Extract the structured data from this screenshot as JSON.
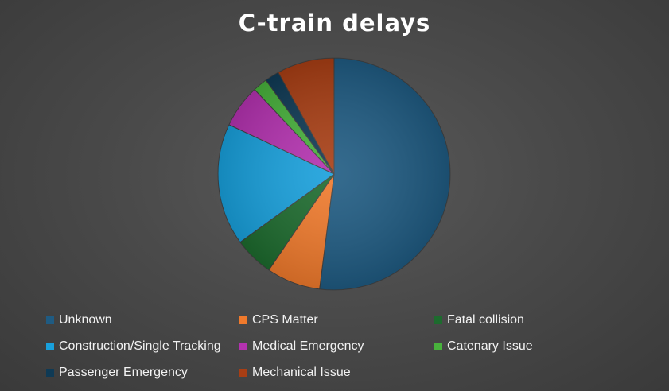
{
  "chart_data": {
    "type": "pie",
    "title": "C-train delays",
    "start_angle_deg": 0,
    "direction": "clockwise",
    "legend_position": "bottom",
    "slices": [
      {
        "label": "Unknown",
        "value": 52,
        "color": "#1f5b82"
      },
      {
        "label": "CPS Matter",
        "value": 7.5,
        "color": "#f07a2c"
      },
      {
        "label": "Fatal collision",
        "value": 5.5,
        "color": "#1d6b2e"
      },
      {
        "label": "Construction/Single Tracking",
        "value": 17,
        "color": "#18a0dc"
      },
      {
        "label": "Medical Emergency",
        "value": 6,
        "color": "#b432b0"
      },
      {
        "label": "Catenary Issue",
        "value": 2,
        "color": "#48b23c"
      },
      {
        "label": "Passenger Emergency",
        "value": 2,
        "color": "#0f3a55"
      },
      {
        "label": "Mechanical Issue",
        "value": 8,
        "color": "#a83e14"
      }
    ]
  }
}
